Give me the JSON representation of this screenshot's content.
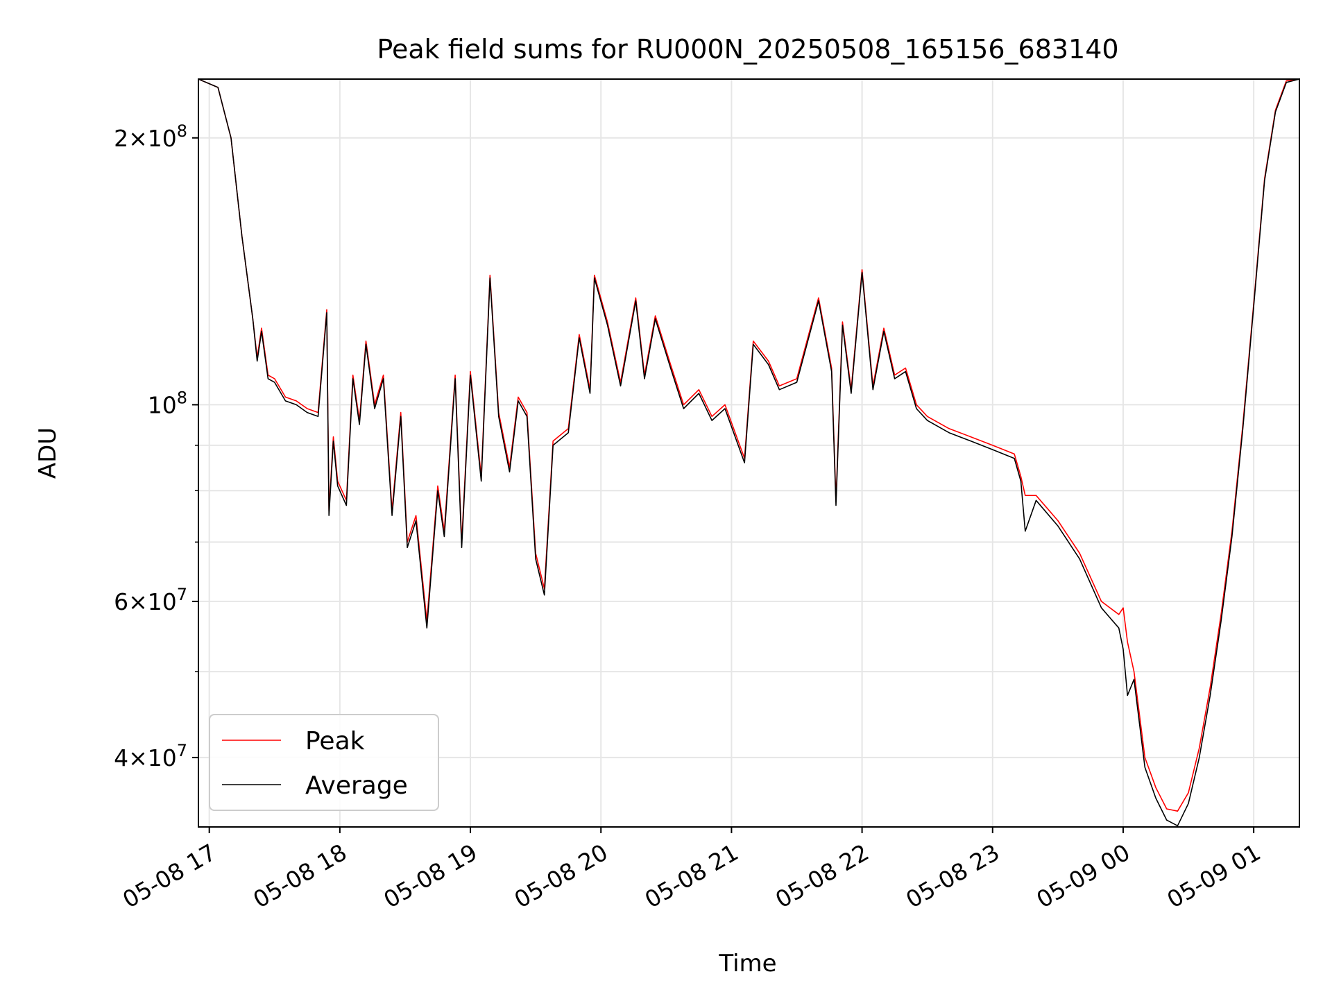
{
  "chart_data": {
    "type": "line",
    "title": "Peak field sums for RU000N_20250508_165156_683140",
    "xlabel": "Time",
    "ylabel": "ADU",
    "xlim": [
      "2025-05-08 16:55",
      "2025-05-09 01:21"
    ],
    "ylim": [
      33400000,
      233000000
    ],
    "yscale": "log",
    "grid": true,
    "legend": "lower-left",
    "x_ticks": [
      "05-08 17",
      "05-08 18",
      "05-08 19",
      "05-08 20",
      "05-08 21",
      "05-08 22",
      "05-08 23",
      "05-09 00",
      "05-09 01"
    ],
    "y_ticks": [
      {
        "value": 200000000,
        "mantissa": "2",
        "exponent": "8"
      },
      {
        "value": 100000000,
        "mantissa": "",
        "exponent": "8"
      },
      {
        "value": 60000000,
        "mantissa": "6",
        "exponent": "7"
      },
      {
        "value": 40000000,
        "mantissa": "4",
        "exponent": "7"
      }
    ],
    "x": [
      "2025-05-08 16:55",
      "2025-05-08 17:04",
      "2025-05-08 17:10",
      "2025-05-08 17:15",
      "2025-05-08 17:20",
      "2025-05-08 17:22",
      "2025-05-08 17:24",
      "2025-05-08 17:27",
      "2025-05-08 17:30",
      "2025-05-08 17:35",
      "2025-05-08 17:40",
      "2025-05-08 17:45",
      "2025-05-08 17:50",
      "2025-05-08 17:54",
      "2025-05-08 17:55",
      "2025-05-08 17:57",
      "2025-05-08 17:59",
      "2025-05-08 18:03",
      "2025-05-08 18:06",
      "2025-05-08 18:09",
      "2025-05-08 18:12",
      "2025-05-08 18:16",
      "2025-05-08 18:20",
      "2025-05-08 18:24",
      "2025-05-08 18:28",
      "2025-05-08 18:31",
      "2025-05-08 18:35",
      "2025-05-08 18:40",
      "2025-05-08 18:45",
      "2025-05-08 18:48",
      "2025-05-08 18:53",
      "2025-05-08 18:56",
      "2025-05-08 19:00",
      "2025-05-08 19:05",
      "2025-05-08 19:09",
      "2025-05-08 19:13",
      "2025-05-08 19:18",
      "2025-05-08 19:22",
      "2025-05-08 19:26",
      "2025-05-08 19:30",
      "2025-05-08 19:34",
      "2025-05-08 19:38",
      "2025-05-08 19:45",
      "2025-05-08 19:50",
      "2025-05-08 19:55",
      "2025-05-08 19:57",
      "2025-05-08 20:03",
      "2025-05-08 20:09",
      "2025-05-08 20:16",
      "2025-05-08 20:20",
      "2025-05-08 20:25",
      "2025-05-08 20:32",
      "2025-05-08 20:38",
      "2025-05-08 20:45",
      "2025-05-08 20:51",
      "2025-05-08 20:57",
      "2025-05-08 21:06",
      "2025-05-08 21:10",
      "2025-05-08 21:17",
      "2025-05-08 21:22",
      "2025-05-08 21:30",
      "2025-05-08 21:40",
      "2025-05-08 21:46",
      "2025-05-08 21:48",
      "2025-05-08 21:51",
      "2025-05-08 21:55",
      "2025-05-08 22:00",
      "2025-05-08 22:05",
      "2025-05-08 22:10",
      "2025-05-08 22:15",
      "2025-05-08 22:20",
      "2025-05-08 22:25",
      "2025-05-08 22:30",
      "2025-05-08 22:40",
      "2025-05-08 22:50",
      "2025-05-08 23:00",
      "2025-05-08 23:10",
      "2025-05-08 23:13",
      "2025-05-08 23:15",
      "2025-05-08 23:20",
      "2025-05-08 23:30",
      "2025-05-08 23:40",
      "2025-05-08 23:50",
      "2025-05-08 23:58",
      "2025-05-09 00:00",
      "2025-05-09 00:02",
      "2025-05-09 00:05",
      "2025-05-09 00:10",
      "2025-05-09 00:15",
      "2025-05-09 00:20",
      "2025-05-09 00:25",
      "2025-05-09 00:30",
      "2025-05-09 00:35",
      "2025-05-09 00:40",
      "2025-05-09 00:45",
      "2025-05-09 00:50",
      "2025-05-09 00:55",
      "2025-05-09 01:00",
      "2025-05-09 01:05",
      "2025-05-09 01:10",
      "2025-05-09 01:15",
      "2025-05-09 01:21"
    ],
    "series": [
      {
        "name": "Peak",
        "color": "#ff0000",
        "values": [
          233000000,
          228000000,
          200000000,
          155000000,
          125000000,
          113000000,
          122000000,
          108000000,
          107000000,
          102000000,
          101000000,
          99000000,
          98000000,
          128000000,
          76000000,
          92000000,
          82000000,
          78000000,
          108000000,
          96000000,
          118000000,
          100000000,
          108000000,
          76000000,
          98000000,
          70000000,
          75000000,
          57000000,
          81000000,
          72000000,
          108000000,
          70000000,
          109000000,
          83000000,
          140000000,
          98000000,
          85000000,
          102000000,
          98000000,
          68000000,
          62000000,
          91000000,
          94000000,
          120000000,
          104000000,
          140000000,
          124000000,
          106000000,
          132000000,
          108000000,
          126000000,
          111000000,
          100000000,
          104000000,
          97000000,
          100000000,
          87000000,
          118000000,
          112000000,
          105000000,
          107000000,
          132000000,
          110000000,
          78000000,
          124000000,
          104000000,
          142000000,
          105000000,
          122000000,
          108000000,
          110000000,
          100000000,
          97000000,
          94000000,
          92000000,
          90000000,
          88000000,
          83000000,
          79000000,
          79000000,
          74000000,
          68000000,
          60000000,
          58000000,
          59000000,
          54000000,
          50000000,
          40000000,
          37000000,
          35000000,
          34800000,
          36500000,
          41000000,
          48000000,
          58000000,
          72000000,
          95000000,
          130000000,
          180000000,
          215000000,
          232000000,
          233000000
        ]
      },
      {
        "name": "Average",
        "color": "#000000",
        "values": [
          233000000,
          228000000,
          200000000,
          155000000,
          125000000,
          112000000,
          121000000,
          107000000,
          106000000,
          101000000,
          100000000,
          98000000,
          97000000,
          127000000,
          75000000,
          91000000,
          81000000,
          77000000,
          107000000,
          95000000,
          117000000,
          99000000,
          107000000,
          75000000,
          97000000,
          69000000,
          74000000,
          56000000,
          80000000,
          71000000,
          107000000,
          69000000,
          108000000,
          82000000,
          139000000,
          97000000,
          84000000,
          101000000,
          97000000,
          67000000,
          61000000,
          90000000,
          93000000,
          119000000,
          103000000,
          139000000,
          123000000,
          105000000,
          131000000,
          107000000,
          125000000,
          110000000,
          99000000,
          103000000,
          96000000,
          99000000,
          86000000,
          117000000,
          111000000,
          104000000,
          106000000,
          131000000,
          109000000,
          77000000,
          123000000,
          103000000,
          141000000,
          104000000,
          121000000,
          107000000,
          109000000,
          99000000,
          96000000,
          93000000,
          91000000,
          89000000,
          87000000,
          82000000,
          72000000,
          78000000,
          73000000,
          67000000,
          59000000,
          56000000,
          53000000,
          47000000,
          49000000,
          39000000,
          36000000,
          34000000,
          33500000,
          35500000,
          40000000,
          47000000,
          57000000,
          71000000,
          94000000,
          129000000,
          179000000,
          214000000,
          231000000,
          233000000
        ]
      }
    ]
  }
}
